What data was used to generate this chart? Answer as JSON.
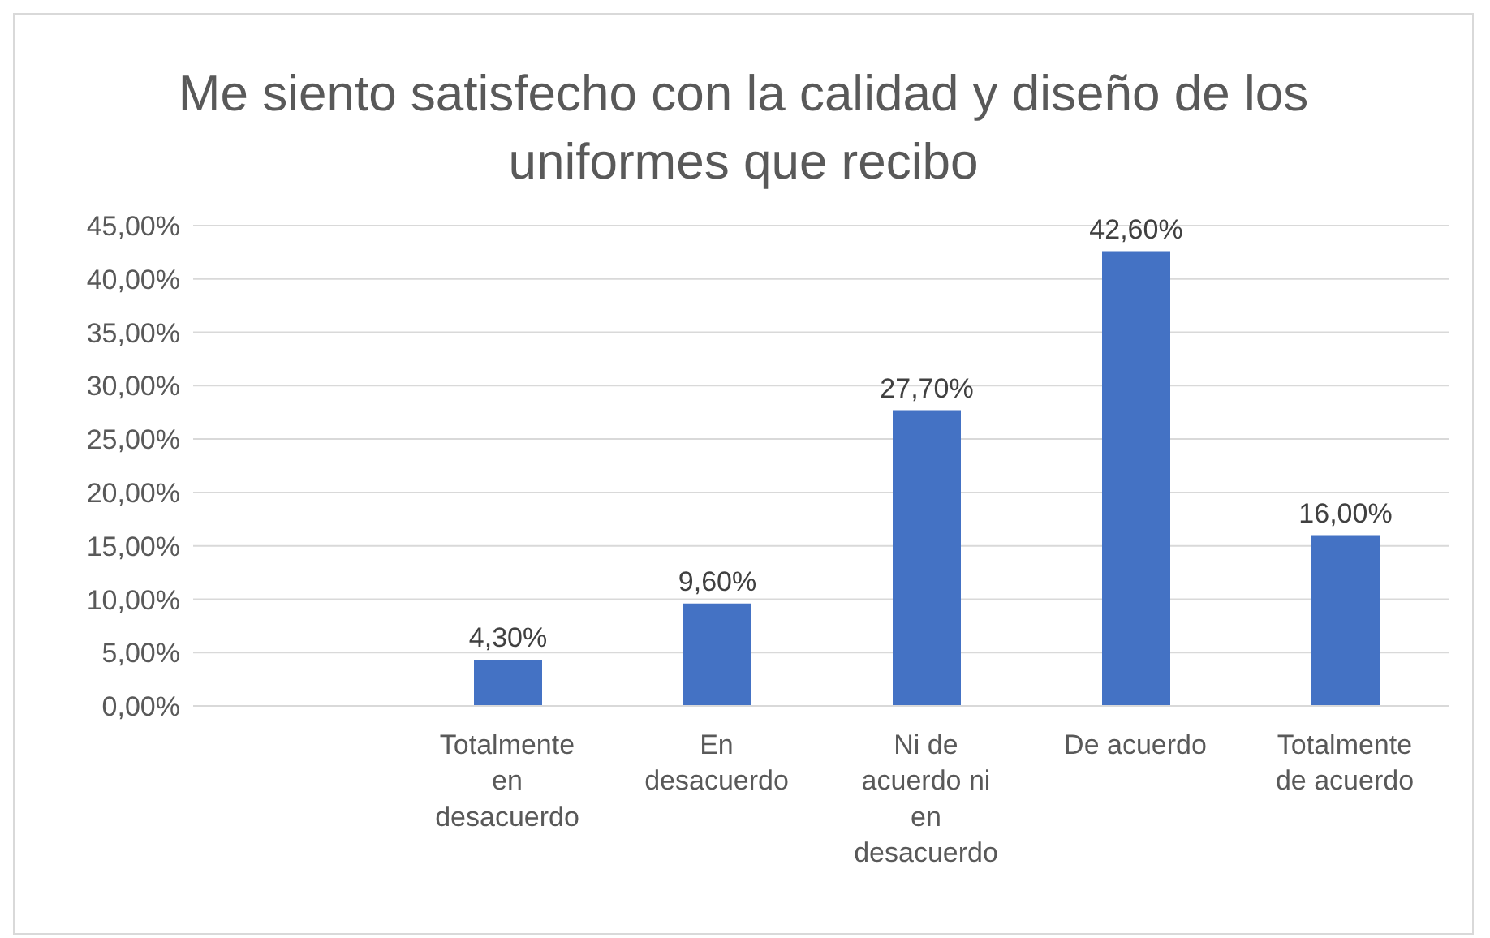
{
  "chart_data": {
    "type": "bar",
    "title": "Me siento satisfecho con la calidad y diseño de los uniformes que recibo",
    "categories": [
      null,
      "Totalmente en desacuerdo",
      "En desacuerdo",
      "Ni de acuerdo ni en desacuerdo",
      "De acuerdo",
      "Totalmente de acuerdo"
    ],
    "values": [
      null,
      4.3,
      9.6,
      27.7,
      42.6,
      16.0
    ],
    "value_labels": [
      null,
      "4,30%",
      "9,60%",
      "27,70%",
      "42,60%",
      "16,00%"
    ],
    "color": "#4472c4",
    "ylim": [
      0,
      45
    ],
    "yticks": [
      {
        "value": 0,
        "label": "0,00%"
      },
      {
        "value": 5,
        "label": "5,00%"
      },
      {
        "value": 10,
        "label": "10,00%"
      },
      {
        "value": 15,
        "label": "15,00%"
      },
      {
        "value": 20,
        "label": "20,00%"
      },
      {
        "value": 25,
        "label": "25,00%"
      },
      {
        "value": 30,
        "label": "30,00%"
      },
      {
        "value": 35,
        "label": "35,00%"
      },
      {
        "value": 40,
        "label": "40,00%"
      },
      {
        "value": 45,
        "label": "45,00%"
      }
    ],
    "grid": "y",
    "legend": false
  }
}
